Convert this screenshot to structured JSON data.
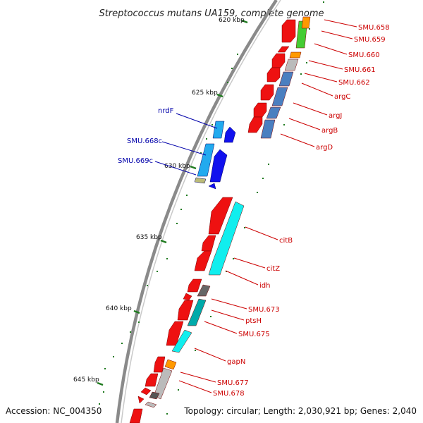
{
  "title": "Streptococcus mutans UA159, complete genome",
  "accession_text": "Accession: NC_004350",
  "summary_text": "Topology: circular; Length: 2,030,921 bp; Genes: 2,040",
  "colors": {
    "backbone": "#888888",
    "tick": "#1f7a1f",
    "forward_gene": "#ee1111",
    "label_red": "#cc0000",
    "label_blue": "#0000aa"
  },
  "kbp_ticks": [
    {
      "label": "620 kbp"
    },
    {
      "label": "625 kbp"
    },
    {
      "label": "630 kbp"
    },
    {
      "label": "635 kbp"
    },
    {
      "label": "640 kbp"
    },
    {
      "label": "645 kbp"
    }
  ],
  "gene_labels_right": [
    "SMU.658",
    "SMU.659",
    "SMU.660",
    "SMU.661",
    "SMU.662",
    "argC",
    "argJ",
    "argB",
    "argD",
    "citB",
    "citZ",
    "idh",
    "SMU.673",
    "ptsH",
    "SMU.675",
    "gapN",
    "SMU.677",
    "SMU.678"
  ],
  "gene_labels_left": [
    "nrdF",
    "SMU.668c",
    "SMU.669c"
  ]
}
